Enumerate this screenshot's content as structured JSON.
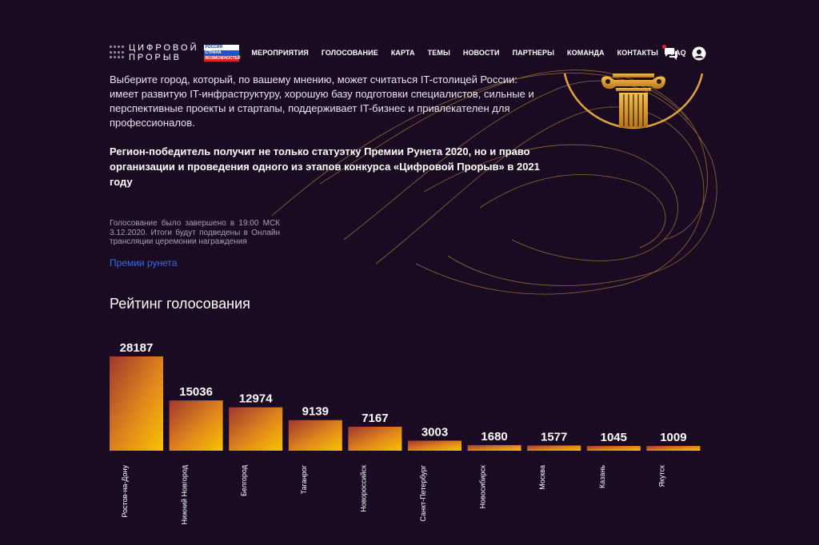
{
  "logo": {
    "line1": "ЦИФРОВОЙ",
    "line2": "ПРОРЫВ",
    "badge": [
      "РОССИЯ",
      "СТРАНА",
      "ВОЗМОЖНОСТЕЙ"
    ]
  },
  "nav": {
    "items": [
      "МЕРОПРИЯТИЯ",
      "ГОЛОСОВАНИЕ",
      "КАРТА",
      "ТЕМЫ",
      "НОВОСТИ",
      "ПАРТНЕРЫ",
      "КОМАНДА",
      "КОНТАКТЫ",
      "FAQ"
    ]
  },
  "icons": {
    "chat": "chat-icon",
    "user": "user-icon",
    "column": "column-icon"
  },
  "intro": {
    "text": "Выберите город, который, по вашему мнению, может считаться IT-столицей России: имеет развитую IT-инфраструктуру, хорошую базу подготовки специалистов, сильные и перспективные проекты и стартапы, поддерживает IT-бизнес и привлекателен для профессионалов.",
    "strong": "Регион-победитель получит не только статуэтку Премии Рунета 2020, но и право организации и проведения одного из этапов конкурса «Цифровой Прорыв» в 2021 году"
  },
  "vote": {
    "note": "Голосование было завершено в 19:00 МСК 3.12.2020. Итоги будут подведены в Онлайн трансляции церемонии награждения",
    "link": "Премии рунета"
  },
  "rating": {
    "title": "Рейтинг голосования"
  },
  "colors": {
    "background": "#1a0b23",
    "bar_top": "#a2362f",
    "bar_bottom": "#f7c400",
    "link": "#2f6ee6",
    "line": "#b88a3a"
  },
  "chart_data": {
    "type": "bar",
    "categories": [
      "Ростов-на-Дону",
      "Нижний Новгород",
      "Белгород",
      "Таганрог",
      "Новороссийск",
      "Санкт-Петербург",
      "Новосибирск",
      "Москва",
      "Казань",
      "Якутск"
    ],
    "values": [
      28187,
      15036,
      12974,
      9139,
      7167,
      3003,
      1680,
      1577,
      1045,
      1009
    ],
    "title": "Рейтинг голосования",
    "xlabel": "",
    "ylabel": "",
    "grid": false
  }
}
